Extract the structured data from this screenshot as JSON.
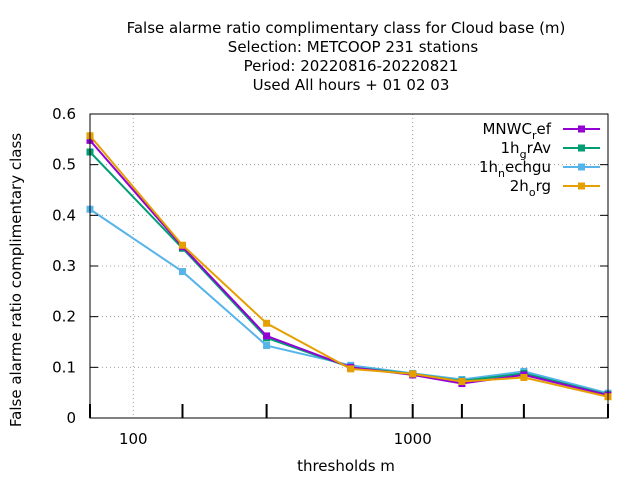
{
  "chart_data": {
    "type": "line",
    "title_lines": [
      "False alarme ratio complimentary class  for Cloud base (m)",
      "Selection: METCOOP    231 stations",
      "Period: 20220816-20220821",
      "Used  All hours + 01 02 03"
    ],
    "xlabel": "thresholds m",
    "ylabel": "False alarme ratio complimentary class",
    "x_scale": "log",
    "xlim": [
      70,
      5000
    ],
    "ylim": [
      0,
      0.6
    ],
    "x_ticks": [
      100,
      1000
    ],
    "x_tick_labels": [
      "100",
      "1000"
    ],
    "y_ticks": [
      0,
      0.1,
      0.2,
      0.3,
      0.4,
      0.5,
      0.6
    ],
    "y_tick_labels": [
      "0",
      "0.1",
      "0.2",
      "0.3",
      "0.4",
      "0.5",
      "0.6"
    ],
    "grid": true,
    "legend_position": "top-right",
    "x": [
      70,
      150,
      300,
      600,
      1000,
      1500,
      2500,
      5000
    ],
    "series": [
      {
        "legend": {
          "base": "MNWC",
          "sub": "r",
          "rest": "ef"
        },
        "color": "#9400d3",
        "values": [
          0.548,
          0.338,
          0.162,
          0.1,
          0.085,
          0.068,
          0.085,
          0.045
        ]
      },
      {
        "legend": {
          "base": "1h",
          "sub": "g",
          "rest": "rAv"
        },
        "color": "#009e73",
        "values": [
          0.525,
          0.335,
          0.158,
          0.1,
          0.087,
          0.073,
          0.088,
          0.046
        ]
      },
      {
        "legend": {
          "base": "1h",
          "sub": "n",
          "rest": "echgu"
        },
        "color": "#56b4e9",
        "values": [
          0.412,
          0.289,
          0.143,
          0.104,
          0.088,
          0.076,
          0.092,
          0.049
        ]
      },
      {
        "legend": {
          "base": "2h",
          "sub": "o",
          "rest": "rg"
        },
        "color": "#e69f00",
        "values": [
          0.557,
          0.341,
          0.187,
          0.097,
          0.087,
          0.072,
          0.08,
          0.042
        ]
      }
    ],
    "tick_marks_x": [
      70,
      150,
      300,
      600,
      1000,
      1500,
      2500,
      5000
    ]
  }
}
